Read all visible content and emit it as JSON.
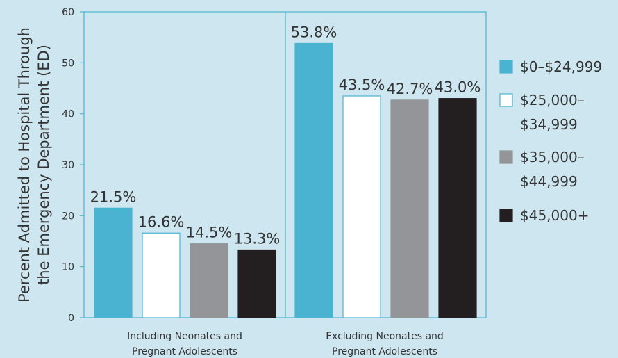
{
  "chart_data": {
    "type": "bar",
    "ylabel_lines": [
      "Percent Admitted to Hospital Through",
      "the Emergency Department (ED)"
    ],
    "ylim": [
      0,
      60
    ],
    "yticks": [
      0,
      10,
      20,
      30,
      40,
      50,
      60
    ],
    "grid": false,
    "legend_position": "right",
    "categories": [
      {
        "lines": [
          "Including Neonates and",
          "Pregnant Adolescents"
        ]
      },
      {
        "lines": [
          "Excluding Neonates and",
          "Pregnant Adolescents"
        ]
      }
    ],
    "series": [
      {
        "legend_lines": [
          "$0–$24,999"
        ],
        "color": "#4ab3d2",
        "values": [
          21.5,
          53.8
        ],
        "labels": [
          "21.5%",
          "53.8%"
        ]
      },
      {
        "legend_lines": [
          "$25,000–",
          "$34,999"
        ],
        "color": "#ffffff",
        "values": [
          16.6,
          43.5
        ],
        "labels": [
          "16.6%",
          "43.5%"
        ]
      },
      {
        "legend_lines": [
          "$35,000–",
          "$44,999"
        ],
        "color": "#939598",
        "values": [
          14.5,
          42.7
        ],
        "labels": [
          "14.5%",
          "42.7%"
        ]
      },
      {
        "legend_lines": [
          "$45,000+"
        ],
        "color": "#231f20",
        "values": [
          13.3,
          43.0
        ],
        "labels": [
          "13.3%",
          "43.0%"
        ]
      }
    ]
  }
}
